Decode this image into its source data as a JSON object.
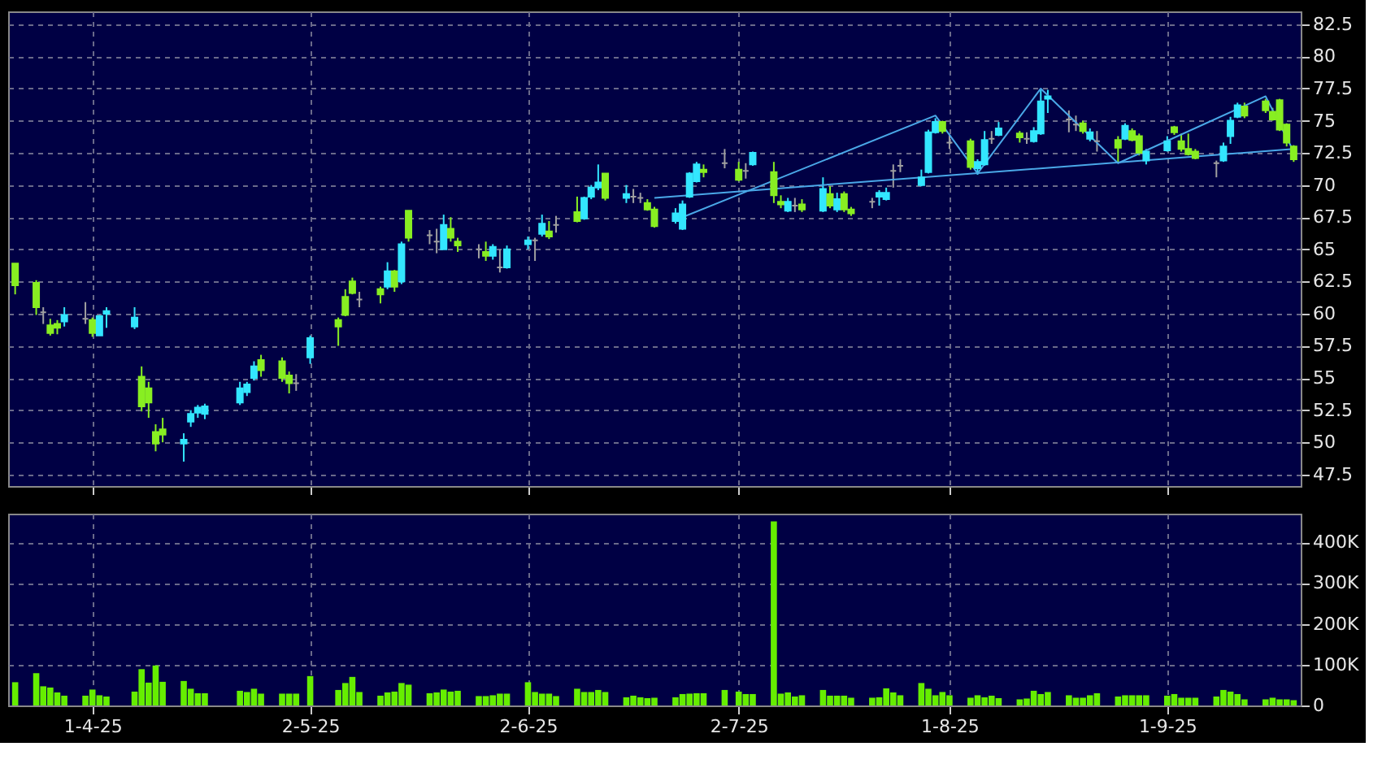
{
  "chart_data": [
    {
      "type": "candlestick",
      "x": [
        "2025-03-21",
        "2025-03-24",
        "2025-03-25",
        "2025-03-26",
        "2025-03-27",
        "2025-03-28",
        "2025-03-31",
        "2025-04-01",
        "2025-04-02",
        "2025-04-03",
        "2025-04-07",
        "2025-04-08",
        "2025-04-09",
        "2025-04-10",
        "2025-04-11",
        "2025-04-14",
        "2025-04-15",
        "2025-04-16",
        "2025-04-17",
        "2025-04-22",
        "2025-04-23",
        "2025-04-24",
        "2025-04-25",
        "2025-04-28",
        "2025-04-29",
        "2025-04-30",
        "2025-05-02",
        "2025-05-06",
        "2025-05-07",
        "2025-05-08",
        "2025-05-09",
        "2025-05-12",
        "2025-05-13",
        "2025-05-14",
        "2025-05-15",
        "2025-05-16",
        "2025-05-19",
        "2025-05-20",
        "2025-05-21",
        "2025-05-22",
        "2025-05-23",
        "2025-05-26",
        "2025-05-27",
        "2025-05-28",
        "2025-05-29",
        "2025-05-30",
        "2025-06-02",
        "2025-06-03",
        "2025-06-04",
        "2025-06-05",
        "2025-06-06",
        "2025-06-09",
        "2025-06-10",
        "2025-06-11",
        "2025-06-12",
        "2025-06-13",
        "2025-06-16",
        "2025-06-17",
        "2025-06-18",
        "2025-06-19",
        "2025-06-20",
        "2025-06-23",
        "2025-06-24",
        "2025-06-25",
        "2025-06-26",
        "2025-06-27",
        "2025-06-30",
        "2025-07-02",
        "2025-07-03",
        "2025-07-04",
        "2025-07-07",
        "2025-07-08",
        "2025-07-09",
        "2025-07-10",
        "2025-07-11",
        "2025-07-14",
        "2025-07-15",
        "2025-07-16",
        "2025-07-17",
        "2025-07-18",
        "2025-07-21",
        "2025-07-22",
        "2025-07-23",
        "2025-07-24",
        "2025-07-25",
        "2025-07-28",
        "2025-07-29",
        "2025-07-30",
        "2025-07-31",
        "2025-08-01",
        "2025-08-04",
        "2025-08-05",
        "2025-08-06",
        "2025-08-07",
        "2025-08-08",
        "2025-08-11",
        "2025-08-12",
        "2025-08-13",
        "2025-08-14",
        "2025-08-15",
        "2025-08-18",
        "2025-08-19",
        "2025-08-20",
        "2025-08-21",
        "2025-08-22",
        "2025-08-25",
        "2025-08-26",
        "2025-08-27",
        "2025-08-28",
        "2025-08-29",
        "2025-09-01",
        "2025-09-02",
        "2025-09-03",
        "2025-09-04",
        "2025-09-05",
        "2025-09-08",
        "2025-09-09",
        "2025-09-10",
        "2025-09-11",
        "2025-09-12",
        "2025-09-15",
        "2025-09-16",
        "2025-09-17",
        "2025-09-18",
        "2025-09-19"
      ],
      "ohlc": [
        [
          63.9,
          63.9,
          61.5,
          62.2
        ],
        [
          62.4,
          62.6,
          59.9,
          60.5
        ],
        [
          60.1,
          60.5,
          59.2,
          60.1
        ],
        [
          59.1,
          59.6,
          58.3,
          58.5
        ],
        [
          59.2,
          59.5,
          58.4,
          58.9
        ],
        [
          59.4,
          60.5,
          59.0,
          59.9
        ],
        [
          59.6,
          60.9,
          59.2,
          59.6
        ],
        [
          59.5,
          59.7,
          58.2,
          58.5
        ],
        [
          58.3,
          59.9,
          58.3,
          59.8
        ],
        [
          60.0,
          60.5,
          58.9,
          60.2
        ],
        [
          59.0,
          60.5,
          58.8,
          59.7
        ],
        [
          55.1,
          55.9,
          52.4,
          52.8
        ],
        [
          54.2,
          54.7,
          51.9,
          53.1
        ],
        [
          50.8,
          51.4,
          49.3,
          49.9
        ],
        [
          51.0,
          51.9,
          50.0,
          50.6
        ],
        [
          49.9,
          50.7,
          48.5,
          50.2
        ],
        [
          51.6,
          52.5,
          51.2,
          52.2
        ],
        [
          52.3,
          52.9,
          51.9,
          52.7
        ],
        [
          52.2,
          53.0,
          51.8,
          52.8
        ],
        [
          53.1,
          54.7,
          52.9,
          54.2
        ],
        [
          53.9,
          54.7,
          53.6,
          54.5
        ],
        [
          55.0,
          56.3,
          54.8,
          55.9
        ],
        [
          56.4,
          56.8,
          55.1,
          55.6
        ],
        [
          56.3,
          56.6,
          54.7,
          55.0
        ],
        [
          55.2,
          55.5,
          53.8,
          54.6
        ],
        [
          54.6,
          55.3,
          54.0,
          54.6
        ],
        [
          56.6,
          58.3,
          56.1,
          58.1
        ],
        [
          59.5,
          59.7,
          57.5,
          59.0
        ],
        [
          61.3,
          61.9,
          59.8,
          59.9
        ],
        [
          62.5,
          62.8,
          61.5,
          61.6
        ],
        [
          61.1,
          61.7,
          60.5,
          61.1
        ],
        [
          61.9,
          62.1,
          60.8,
          61.5
        ],
        [
          62.1,
          64.0,
          61.9,
          63.3
        ],
        [
          63.3,
          63.4,
          61.7,
          62.1
        ],
        [
          62.5,
          65.6,
          62.3,
          65.4
        ],
        [
          68.0,
          68.0,
          65.6,
          65.9
        ],
        [
          66.1,
          66.5,
          65.4,
          66.1
        ],
        [
          65.6,
          66.6,
          64.7,
          65.6
        ],
        [
          65.0,
          67.7,
          65.0,
          66.9
        ],
        [
          66.6,
          67.5,
          65.6,
          65.9
        ],
        [
          65.6,
          65.9,
          64.8,
          65.3
        ],
        [
          65.0,
          65.4,
          64.3,
          65.0
        ],
        [
          64.8,
          65.6,
          64.1,
          64.5
        ],
        [
          64.5,
          65.4,
          64.2,
          65.2
        ],
        [
          63.6,
          65.0,
          63.2,
          63.6
        ],
        [
          63.6,
          65.3,
          63.5,
          65.0
        ],
        [
          65.4,
          66.0,
          65.0,
          65.7
        ],
        [
          65.7,
          65.9,
          64.1,
          65.7
        ],
        [
          66.2,
          67.7,
          66.0,
          67.0
        ],
        [
          66.4,
          67.2,
          65.8,
          66.0
        ],
        [
          66.9,
          67.6,
          66.3,
          66.9
        ],
        [
          67.9,
          69.1,
          67.1,
          67.2
        ],
        [
          67.4,
          69.1,
          67.3,
          69.0
        ],
        [
          69.1,
          70.0,
          68.9,
          69.8
        ],
        [
          69.8,
          71.6,
          69.6,
          70.2
        ],
        [
          70.9,
          70.9,
          68.8,
          69.0
        ],
        [
          69.0,
          70.0,
          68.6,
          69.3
        ],
        [
          69.1,
          69.7,
          68.6,
          69.1
        ],
        [
          69.0,
          69.4,
          68.6,
          69.0
        ],
        [
          68.6,
          68.9,
          68.0,
          68.1
        ],
        [
          68.1,
          68.3,
          66.7,
          66.8
        ],
        [
          67.2,
          68.2,
          67.0,
          67.8
        ],
        [
          66.6,
          68.8,
          66.5,
          68.5
        ],
        [
          69.1,
          71.0,
          69.0,
          70.9
        ],
        [
          70.3,
          71.8,
          70.2,
          71.6
        ],
        [
          71.2,
          71.6,
          70.6,
          71.0
        ],
        [
          71.7,
          72.8,
          71.3,
          71.7
        ],
        [
          71.2,
          71.8,
          70.3,
          70.4
        ],
        [
          71.1,
          71.7,
          70.5,
          71.1
        ],
        [
          71.6,
          72.6,
          71.5,
          72.5
        ],
        [
          71.0,
          71.8,
          68.6,
          69.2
        ],
        [
          68.7,
          69.2,
          68.2,
          68.5
        ],
        [
          68.0,
          69.0,
          67.9,
          68.7
        ],
        [
          68.4,
          69.0,
          67.9,
          68.4
        ],
        [
          68.5,
          68.9,
          67.9,
          68.1
        ],
        [
          68.0,
          70.6,
          67.9,
          69.7
        ],
        [
          69.3,
          69.9,
          68.2,
          68.4
        ],
        [
          68.1,
          69.4,
          67.9,
          68.9
        ],
        [
          69.3,
          69.5,
          67.9,
          68.1
        ],
        [
          68.1,
          68.3,
          67.6,
          67.8
        ],
        [
          68.7,
          69.0,
          68.2,
          68.7
        ],
        [
          69.1,
          69.6,
          68.4,
          69.4
        ],
        [
          68.9,
          69.8,
          68.8,
          69.4
        ],
        [
          71.1,
          71.6,
          69.8,
          71.1
        ],
        [
          71.5,
          72.0,
          71.0,
          71.5
        ],
        [
          70.0,
          71.2,
          69.9,
          70.6
        ],
        [
          71.0,
          74.3,
          70.9,
          74.1
        ],
        [
          74.1,
          75.2,
          74.0,
          74.9
        ],
        [
          74.9,
          75.0,
          74.0,
          74.2
        ],
        [
          73.3,
          73.9,
          72.8,
          73.3
        ],
        [
          73.4,
          73.6,
          71.2,
          71.4
        ],
        [
          71.3,
          72.0,
          70.8,
          71.8
        ],
        [
          71.6,
          74.2,
          71.5,
          73.5
        ],
        [
          73.6,
          74.2,
          73.2,
          73.6
        ],
        [
          73.9,
          74.9,
          73.8,
          74.4
        ],
        [
          74.0,
          74.2,
          73.3,
          73.7
        ],
        [
          73.6,
          74.1,
          73.2,
          73.6
        ],
        [
          73.4,
          74.5,
          73.3,
          74.2
        ],
        [
          74.0,
          77.4,
          73.9,
          76.5
        ],
        [
          76.7,
          77.4,
          75.6,
          76.9
        ],
        [
          75.1,
          75.8,
          74.1,
          75.1
        ],
        [
          74.7,
          75.4,
          74.2,
          74.7
        ],
        [
          74.8,
          75.0,
          74.0,
          74.2
        ],
        [
          73.6,
          74.4,
          73.4,
          74.1
        ],
        [
          73.4,
          74.2,
          72.6,
          73.4
        ],
        [
          73.5,
          73.8,
          71.8,
          72.9
        ],
        [
          73.6,
          74.8,
          73.5,
          74.6
        ],
        [
          74.2,
          74.4,
          73.4,
          73.5
        ],
        [
          73.8,
          74.0,
          72.3,
          72.5
        ],
        [
          71.9,
          72.8,
          71.6,
          72.6
        ],
        [
          72.7,
          73.8,
          72.6,
          73.4
        ],
        [
          74.5,
          74.6,
          73.9,
          74.1
        ],
        [
          73.4,
          74.0,
          72.6,
          72.8
        ],
        [
          72.8,
          74.0,
          72.3,
          72.4
        ],
        [
          72.6,
          72.8,
          72.0,
          72.1
        ],
        [
          71.7,
          71.9,
          70.6,
          71.7
        ],
        [
          71.9,
          73.3,
          71.8,
          73.0
        ],
        [
          73.8,
          75.3,
          73.2,
          75.0
        ],
        [
          75.3,
          76.4,
          75.2,
          76.2
        ],
        [
          76.1,
          76.4,
          75.2,
          75.4
        ],
        [
          76.5,
          76.7,
          75.6,
          75.8
        ],
        [
          75.7,
          76.0,
          75.0,
          75.1
        ],
        [
          76.6,
          76.7,
          74.2,
          74.3
        ],
        [
          74.7,
          74.8,
          73.0,
          73.3
        ],
        [
          73.0,
          73.1,
          71.8,
          72.0
        ]
      ],
      "colors": [
        "#88ee22",
        "#88ee22",
        "#a0a0a0",
        "#88ee22",
        "#88ee22",
        "#33e6ff",
        "#a0a0a0",
        "#88ee22",
        "#33e6ff",
        "#33e6ff",
        "#33e6ff",
        "#88ee22",
        "#88ee22",
        "#88ee22",
        "#88ee22",
        "#33e6ff",
        "#33e6ff",
        "#33e6ff",
        "#33e6ff",
        "#33e6ff",
        "#33e6ff",
        "#33e6ff",
        "#88ee22",
        "#88ee22",
        "#88ee22",
        "#a0a0a0",
        "#33e6ff",
        "#88ee22",
        "#88ee22",
        "#88ee22",
        "#a0a0a0",
        "#88ee22",
        "#33e6ff",
        "#88ee22",
        "#33e6ff",
        "#88ee22",
        "#a0a0a0",
        "#a0a0a0",
        "#33e6ff",
        "#88ee22",
        "#88ee22",
        "#a0a0a0",
        "#88ee22",
        "#33e6ff",
        "#a0a0a0",
        "#33e6ff",
        "#33e6ff",
        "#a0a0a0",
        "#33e6ff",
        "#88ee22",
        "#a0a0a0",
        "#88ee22",
        "#33e6ff",
        "#33e6ff",
        "#33e6ff",
        "#88ee22",
        "#33e6ff",
        "#a0a0a0",
        "#a0a0a0",
        "#88ee22",
        "#88ee22",
        "#33e6ff",
        "#33e6ff",
        "#33e6ff",
        "#33e6ff",
        "#88ee22",
        "#a0a0a0",
        "#88ee22",
        "#a0a0a0",
        "#33e6ff",
        "#88ee22",
        "#88ee22",
        "#33e6ff",
        "#a0a0a0",
        "#88ee22",
        "#33e6ff",
        "#88ee22",
        "#33e6ff",
        "#88ee22",
        "#88ee22",
        "#a0a0a0",
        "#33e6ff",
        "#33e6ff",
        "#a0a0a0",
        "#a0a0a0",
        "#33e6ff",
        "#33e6ff",
        "#33e6ff",
        "#88ee22",
        "#a0a0a0",
        "#88ee22",
        "#33e6ff",
        "#33e6ff",
        "#a0a0a0",
        "#33e6ff",
        "#88ee22",
        "#a0a0a0",
        "#33e6ff",
        "#33e6ff",
        "#33e6ff",
        "#a0a0a0",
        "#a0a0a0",
        "#88ee22",
        "#33e6ff",
        "#a0a0a0",
        "#88ee22",
        "#33e6ff",
        "#88ee22",
        "#88ee22",
        "#33e6ff",
        "#33e6ff",
        "#88ee22",
        "#88ee22",
        "#88ee22",
        "#88ee22",
        "#a0a0a0",
        "#33e6ff",
        "#33e6ff",
        "#33e6ff",
        "#88ee22",
        "#88ee22",
        "#88ee22",
        "#88ee22",
        "#88ee22",
        "#88ee22"
      ],
      "series": [
        {
          "type": "line",
          "color": "#4aa8e8",
          "x": [
            "2025-06-24",
            "2025-07-30",
            "2025-08-05",
            "2025-08-14",
            "2025-08-25",
            "2025-09-15",
            "2025-09-19"
          ],
          "values": [
            67.5,
            75.4,
            70.9,
            77.5,
            71.7,
            76.9,
            72.6
          ]
        },
        {
          "type": "line",
          "color": "#4aa8e8",
          "x": [
            "2025-06-20",
            "2025-09-19"
          ],
          "values": [
            69.0,
            72.8
          ]
        }
      ],
      "ylim": [
        46.6,
        83.5
      ],
      "yticks": [
        47.5,
        50,
        52.5,
        55,
        57.5,
        60,
        62.5,
        65,
        67.5,
        70,
        72.5,
        75,
        77.5,
        80,
        82.5
      ],
      "xlim": [
        "2025-03-20",
        "2025-09-20"
      ],
      "xticks": [
        {
          "value": "2025-04-01",
          "label": null
        },
        {
          "value": "2025-05-02",
          "label": null
        },
        {
          "value": "2025-06-02",
          "label": null
        },
        {
          "value": "2025-07-02",
          "label": null
        },
        {
          "value": "2025-08-01",
          "label": null
        },
        {
          "value": "2025-09-01",
          "label": null
        }
      ],
      "tick_labels": "y",
      "grid": true
    },
    {
      "type": "bar",
      "x": [
        "2025-03-21",
        "2025-03-24",
        "2025-03-25",
        "2025-03-26",
        "2025-03-27",
        "2025-03-28",
        "2025-03-31",
        "2025-04-01",
        "2025-04-02",
        "2025-04-03",
        "2025-04-07",
        "2025-04-08",
        "2025-04-09",
        "2025-04-10",
        "2025-04-11",
        "2025-04-14",
        "2025-04-15",
        "2025-04-16",
        "2025-04-17",
        "2025-04-22",
        "2025-04-23",
        "2025-04-24",
        "2025-04-25",
        "2025-04-28",
        "2025-04-29",
        "2025-04-30",
        "2025-05-02",
        "2025-05-06",
        "2025-05-07",
        "2025-05-08",
        "2025-05-09",
        "2025-05-12",
        "2025-05-13",
        "2025-05-14",
        "2025-05-15",
        "2025-05-16",
        "2025-05-19",
        "2025-05-20",
        "2025-05-21",
        "2025-05-22",
        "2025-05-23",
        "2025-05-26",
        "2025-05-27",
        "2025-05-28",
        "2025-05-29",
        "2025-05-30",
        "2025-06-02",
        "2025-06-03",
        "2025-06-04",
        "2025-06-05",
        "2025-06-06",
        "2025-06-09",
        "2025-06-10",
        "2025-06-11",
        "2025-06-12",
        "2025-06-13",
        "2025-06-16",
        "2025-06-17",
        "2025-06-18",
        "2025-06-19",
        "2025-06-20",
        "2025-06-23",
        "2025-06-24",
        "2025-06-25",
        "2025-06-26",
        "2025-06-27",
        "2025-06-30",
        "2025-07-02",
        "2025-07-03",
        "2025-07-04",
        "2025-07-07",
        "2025-07-08",
        "2025-07-09",
        "2025-07-10",
        "2025-07-11",
        "2025-07-14",
        "2025-07-15",
        "2025-07-16",
        "2025-07-17",
        "2025-07-18",
        "2025-07-21",
        "2025-07-22",
        "2025-07-23",
        "2025-07-24",
        "2025-07-25",
        "2025-07-28",
        "2025-07-29",
        "2025-07-30",
        "2025-07-31",
        "2025-08-01",
        "2025-08-04",
        "2025-08-05",
        "2025-08-06",
        "2025-08-07",
        "2025-08-08",
        "2025-08-11",
        "2025-08-12",
        "2025-08-13",
        "2025-08-14",
        "2025-08-15",
        "2025-08-18",
        "2025-08-19",
        "2025-08-20",
        "2025-08-21",
        "2025-08-22",
        "2025-08-25",
        "2025-08-26",
        "2025-08-27",
        "2025-08-28",
        "2025-08-29",
        "2025-09-01",
        "2025-09-02",
        "2025-09-03",
        "2025-09-04",
        "2025-09-05",
        "2025-09-08",
        "2025-09-09",
        "2025-09-10",
        "2025-09-11",
        "2025-09-12",
        "2025-09-15",
        "2025-09-16",
        "2025-09-17",
        "2025-09-18",
        "2025-09-19"
      ],
      "values": [
        57,
        79,
        47,
        44,
        32,
        24,
        24,
        39,
        25,
        22,
        34,
        89,
        56,
        98,
        58,
        60,
        41,
        30,
        30,
        36,
        33,
        41,
        29,
        29,
        29,
        29,
        72,
        38,
        55,
        70,
        33,
        24,
        32,
        34,
        55,
        51,
        30,
        32,
        39,
        34,
        36,
        23,
        23,
        25,
        29,
        29,
        57,
        33,
        29,
        29,
        23,
        41,
        33,
        33,
        38,
        33,
        20,
        24,
        20,
        18,
        19,
        20,
        28,
        29,
        30,
        30,
        38,
        34,
        28,
        28,
        451,
        29,
        32,
        22,
        25,
        38,
        24,
        24,
        24,
        19,
        19,
        20,
        42,
        32,
        25,
        55,
        41,
        25,
        33,
        25,
        19,
        25,
        20,
        24,
        18,
        15,
        17,
        36,
        28,
        33,
        25,
        19,
        19,
        25,
        30,
        22,
        25,
        25,
        25,
        25,
        24,
        28,
        19,
        19,
        19,
        22,
        38,
        34,
        28,
        15,
        15,
        19,
        15,
        15,
        13
      ],
      "color": "#66ee00",
      "xlim": [
        "2025-03-20",
        "2025-09-20"
      ],
      "ylim": [
        0,
        470
      ],
      "yticks": [
        0,
        {
          "value": 100,
          "label": "100K"
        },
        {
          "value": 200,
          "label": "200K"
        },
        {
          "value": 300,
          "label": "300K"
        },
        {
          "value": 400,
          "label": "400K"
        }
      ],
      "xticks": [
        {
          "value": "2025-04-01",
          "label": "1-4-25"
        },
        {
          "value": "2025-05-02",
          "label": "2-5-25"
        },
        {
          "value": "2025-06-02",
          "label": "2-6-25"
        },
        {
          "value": "2025-07-02",
          "label": "2-7-25"
        },
        {
          "value": "2025-08-01",
          "label": "1-8-25"
        },
        {
          "value": "2025-09-01",
          "label": "1-9-25"
        }
      ],
      "grid": true
    }
  ]
}
